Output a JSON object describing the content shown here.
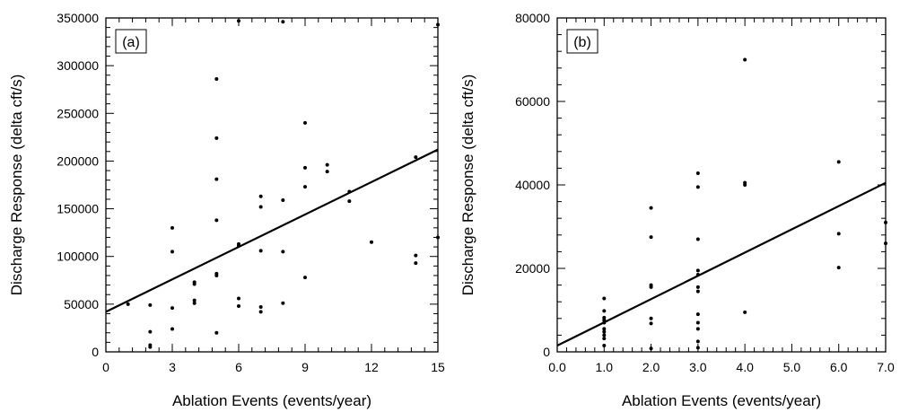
{
  "chart_data": [
    {
      "type": "scatter",
      "panel_label": "(a)",
      "xlabel": "Ablation Events (events/year)",
      "ylabel": "Discharge Response (delta cft/s)",
      "xlim": [
        0,
        15
      ],
      "ylim": [
        0,
        350000
      ],
      "x_ticks": [
        "0",
        "3",
        "6",
        "9",
        "12",
        "15"
      ],
      "y_ticks": [
        "0",
        "50000",
        "100000",
        "150000",
        "200000",
        "250000",
        "300000",
        "350000"
      ],
      "fit_line": {
        "x": [
          0,
          15
        ],
        "y": [
          42000,
          212000
        ]
      },
      "points": [
        [
          1,
          50000
        ],
        [
          2,
          49000
        ],
        [
          2,
          21000
        ],
        [
          2,
          7000
        ],
        [
          2,
          5000
        ],
        [
          3,
          130000
        ],
        [
          3,
          105000
        ],
        [
          3,
          46000
        ],
        [
          3,
          24000
        ],
        [
          4,
          73000
        ],
        [
          4,
          71000
        ],
        [
          4,
          54000
        ],
        [
          4,
          51000
        ],
        [
          5,
          286000
        ],
        [
          5,
          224000
        ],
        [
          5,
          181000
        ],
        [
          5,
          138000
        ],
        [
          5,
          82000
        ],
        [
          5,
          80000
        ],
        [
          5,
          20000
        ],
        [
          6,
          347000
        ],
        [
          6,
          113000
        ],
        [
          6,
          111000
        ],
        [
          6,
          56000
        ],
        [
          6,
          48000
        ],
        [
          7,
          163000
        ],
        [
          7,
          152000
        ],
        [
          7,
          106000
        ],
        [
          7,
          47000
        ],
        [
          7,
          42000
        ],
        [
          8,
          346000
        ],
        [
          8,
          159000
        ],
        [
          8,
          105000
        ],
        [
          8,
          51000
        ],
        [
          9,
          240000
        ],
        [
          9,
          193000
        ],
        [
          9,
          173000
        ],
        [
          9,
          78000
        ],
        [
          10,
          196000
        ],
        [
          10,
          189000
        ],
        [
          11,
          168000
        ],
        [
          11,
          158000
        ],
        [
          12,
          115000
        ],
        [
          14,
          204000
        ],
        [
          14,
          101000
        ],
        [
          14,
          93000
        ],
        [
          15,
          343000
        ],
        [
          15,
          120000
        ]
      ]
    },
    {
      "type": "scatter",
      "panel_label": "(b)",
      "xlabel": "Ablation Events (events/year)",
      "ylabel": "Discharge Response (delta cft/s)",
      "xlim": [
        0,
        7
      ],
      "ylim": [
        0,
        80000
      ],
      "x_ticks": [
        "0.0",
        "1.0",
        "2.0",
        "3.0",
        "4.0",
        "5.0",
        "6.0",
        "7.0"
      ],
      "y_ticks": [
        "0",
        "20000",
        "40000",
        "60000",
        "80000"
      ],
      "fit_line": {
        "x": [
          0,
          7
        ],
        "y": [
          1500,
          40500
        ]
      },
      "points": [
        [
          1,
          12800
        ],
        [
          1,
          9800
        ],
        [
          1,
          8200
        ],
        [
          1,
          7600
        ],
        [
          1,
          7000
        ],
        [
          1,
          5500
        ],
        [
          1,
          4800
        ],
        [
          1,
          4000
        ],
        [
          1,
          3200
        ],
        [
          1,
          1500
        ],
        [
          2,
          34500
        ],
        [
          2,
          27500
        ],
        [
          2,
          16000
        ],
        [
          2,
          15500
        ],
        [
          2,
          8000
        ],
        [
          2,
          6800
        ],
        [
          2,
          800
        ],
        [
          3,
          42800
        ],
        [
          3,
          39500
        ],
        [
          3,
          27000
        ],
        [
          3,
          19500
        ],
        [
          3,
          18500
        ],
        [
          3,
          15500
        ],
        [
          3,
          14500
        ],
        [
          3,
          9000
        ],
        [
          3,
          7000
        ],
        [
          3,
          5500
        ],
        [
          3,
          2500
        ],
        [
          3,
          1000
        ],
        [
          4,
          70000
        ],
        [
          4,
          40500
        ],
        [
          4,
          40000
        ],
        [
          4,
          9500
        ],
        [
          6,
          45500
        ],
        [
          6,
          28300
        ],
        [
          6,
          20200
        ],
        [
          7,
          31000
        ],
        [
          7,
          26000
        ]
      ]
    }
  ]
}
